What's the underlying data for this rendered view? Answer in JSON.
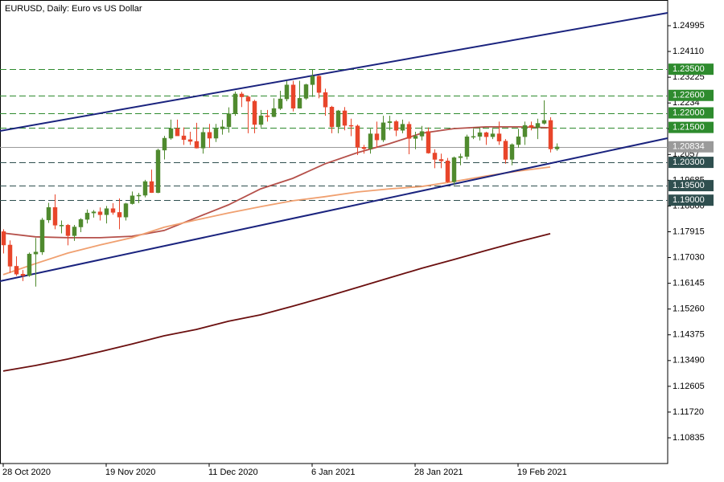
{
  "chart_data": {
    "type": "candlestick",
    "title": "EURUSD, Daily:  Euro vs US Dollar",
    "x": [
      0,
      1,
      2,
      3,
      4,
      5,
      6,
      7,
      8,
      9,
      10,
      11,
      12,
      13,
      14,
      15,
      16,
      17,
      18,
      19,
      20,
      21,
      22,
      23,
      24,
      25,
      26,
      27,
      28,
      29,
      30,
      31,
      32,
      33,
      34,
      35,
      36,
      37,
      38,
      39,
      40,
      41,
      42,
      43,
      44,
      45,
      46,
      47,
      48,
      49,
      50,
      51,
      52,
      53,
      54,
      55,
      56,
      57,
      58,
      59,
      60,
      61,
      62,
      63,
      64,
      65,
      66,
      67,
      68,
      69,
      70,
      71,
      72,
      73,
      74,
      75,
      76,
      77,
      78,
      79,
      80,
      81,
      82,
      83,
      84,
      85,
      86
    ],
    "open": [
      1.1792,
      1.1746,
      1.1673,
      1.1646,
      1.1641,
      1.1715,
      1.1722,
      1.1832,
      1.1875,
      1.1814,
      1.1814,
      1.1778,
      1.1808,
      1.1834,
      1.1856,
      1.186,
      1.185,
      1.1871,
      1.1858,
      1.1842,
      1.1888,
      1.1915,
      1.1917,
      1.1964,
      1.1926,
      1.2072,
      1.2113,
      1.2146,
      1.2121,
      1.2108,
      1.2102,
      1.2079,
      1.2133,
      1.2113,
      1.2145,
      1.2152,
      1.2197,
      1.2265,
      1.2255,
      1.224,
      1.216,
      1.219,
      1.2187,
      1.2215,
      1.2248,
      1.2296,
      1.2216,
      1.225,
      1.2297,
      1.2326,
      1.227,
      1.222,
      1.2152,
      1.2207,
      1.2157,
      1.2155,
      1.2082,
      1.2077,
      1.2128,
      1.2107,
      1.2166,
      1.217,
      1.214,
      1.2161,
      1.2112,
      1.212,
      1.2136,
      1.2062,
      1.204,
      1.2035,
      1.1963,
      1.2046,
      1.205,
      1.2118,
      1.2119,
      1.2132,
      1.2118,
      1.2128,
      1.2103,
      1.204,
      1.2091,
      1.2118,
      1.2157,
      1.215,
      1.2164,
      1.2174,
      1.2076
    ],
    "high": [
      1.18,
      1.1762,
      1.1707,
      1.166,
      1.172,
      1.177,
      1.1839,
      1.1891,
      1.192,
      1.183,
      1.1818,
      1.1815,
      1.1838,
      1.1868,
      1.1866,
      1.1875,
      1.188,
      1.189,
      1.1906,
      1.1891,
      1.193,
      1.1925,
      1.197,
      1.2005,
      1.2077,
      1.2121,
      1.2177,
      1.2177,
      1.215,
      1.2135,
      1.2166,
      1.215,
      1.2162,
      1.2162,
      1.2176,
      1.2219,
      1.2273,
      1.2272,
      1.2259,
      1.2245,
      1.221,
      1.221,
      1.225,
      1.2276,
      1.231,
      1.231,
      1.231,
      1.23,
      1.2349,
      1.233,
      1.2283,
      1.2224,
      1.221,
      1.222,
      1.218,
      1.216,
      1.209,
      1.2145,
      1.217,
      1.219,
      1.219,
      1.2175,
      1.2177,
      1.217,
      1.2135,
      1.2155,
      1.215,
      1.2075,
      1.206,
      1.2045,
      1.205,
      1.206,
      1.2125,
      1.2145,
      1.215,
      1.2135,
      1.2145,
      1.217,
      1.211,
      1.2095,
      1.2145,
      1.217,
      1.217,
      1.218,
      1.2243,
      1.2185,
      1.2095
    ],
    "low": [
      1.1717,
      1.165,
      1.164,
      1.1622,
      1.1637,
      1.1603,
      1.1712,
      1.1822,
      1.18,
      1.1786,
      1.1745,
      1.176,
      1.179,
      1.182,
      1.184,
      1.183,
      1.182,
      1.185,
      1.18,
      1.183,
      1.1885,
      1.189,
      1.191,
      1.1925,
      1.1924,
      1.204,
      1.2108,
      1.2126,
      1.209,
      1.209,
      1.2078,
      1.206,
      1.208,
      1.21,
      1.2125,
      1.2132,
      1.219,
      1.222,
      1.213,
      1.213,
      1.215,
      1.217,
      1.2185,
      1.221,
      1.224,
      1.2205,
      1.2215,
      1.2245,
      1.2255,
      1.225,
      1.219,
      1.213,
      1.213,
      1.214,
      1.212,
      1.2055,
      1.206,
      1.206,
      1.208,
      1.21,
      1.214,
      1.212,
      1.213,
      1.2058,
      1.2075,
      1.2105,
      1.206,
      1.201,
      1.201,
      1.196,
      1.1952,
      1.202,
      1.204,
      1.211,
      1.2105,
      1.209,
      1.211,
      1.209,
      1.2025,
      1.202,
      1.208,
      1.209,
      1.214,
      1.211,
      1.216,
      1.2064,
      1.207
    ],
    "close": [
      1.1746,
      1.1673,
      1.1646,
      1.1641,
      1.1715,
      1.1722,
      1.1832,
      1.1875,
      1.1814,
      1.1814,
      1.1778,
      1.1808,
      1.1834,
      1.1856,
      1.186,
      1.185,
      1.1871,
      1.1858,
      1.1842,
      1.1888,
      1.1915,
      1.1917,
      1.1964,
      1.1926,
      1.2072,
      1.2113,
      1.2146,
      1.2121,
      1.2108,
      1.2102,
      1.2079,
      1.2133,
      1.2113,
      1.2145,
      1.2152,
      1.2197,
      1.2265,
      1.2255,
      1.224,
      1.216,
      1.219,
      1.2187,
      1.2215,
      1.2248,
      1.2296,
      1.2216,
      1.225,
      1.2297,
      1.2326,
      1.227,
      1.222,
      1.2152,
      1.2207,
      1.2157,
      1.2155,
      1.2082,
      1.2077,
      1.2128,
      1.2107,
      1.2166,
      1.217,
      1.214,
      1.2161,
      1.2112,
      1.212,
      1.2136,
      1.2062,
      1.204,
      1.2035,
      1.1963,
      1.2046,
      1.205,
      1.2118,
      1.2119,
      1.2132,
      1.2118,
      1.2128,
      1.2103,
      1.204,
      1.2091,
      1.2118,
      1.2157,
      1.215,
      1.2164,
      1.2174,
      1.2076,
      1.2083
    ],
    "up_color": "#4f8a2e",
    "down_color": "#e8452a",
    "xlim": [
      -0.5,
      103.25
    ],
    "ylim": [
      1.09952,
      1.25878
    ],
    "xticks": [
      {
        "value": 0,
        "label": "28 Oct 2020"
      },
      {
        "value": 16,
        "label": "19 Nov 2020"
      },
      {
        "value": 32,
        "label": "11 Dec 2020"
      },
      {
        "value": 48,
        "label": "6 Jan 2021"
      },
      {
        "value": 64,
        "label": "28 Jan 2021"
      },
      {
        "value": 80,
        "label": "19 Feb 2021"
      }
    ],
    "yticks": [
      1.24995,
      {
        "value": 1.2411,
        "label": "1.24110"
      },
      1.23225,
      1.2234,
      1.21455,
      1.2057,
      1.19685,
      {
        "value": 1.188,
        "label": "1.18800"
      },
      1.17915,
      {
        "value": 1.1703,
        "label": "1.17030"
      },
      1.16145,
      {
        "value": 1.1526,
        "label": "1.15260"
      },
      1.14375,
      {
        "value": 1.1349,
        "label": "1.13490"
      },
      1.12605,
      {
        "value": 1.1172,
        "label": "1.11720"
      },
      1.10835
    ],
    "moving_averages": [
      {
        "color": "#b5504a",
        "x": [
          0,
          5,
          10,
          15,
          20,
          25,
          30,
          35,
          40,
          45,
          50,
          55,
          60,
          65,
          70,
          75,
          80,
          85
        ],
        "values": [
          1.1787,
          1.1774,
          1.1771,
          1.1771,
          1.1776,
          1.1796,
          1.184,
          1.1884,
          1.1939,
          1.1975,
          1.2025,
          1.2063,
          1.2094,
          1.213,
          1.2146,
          1.2152,
          1.2152,
          1.2149
        ]
      },
      {
        "color": "#f0a070",
        "x": [
          0,
          5,
          10,
          15,
          20,
          25,
          30,
          35,
          40,
          45,
          50,
          55,
          60,
          65,
          70,
          75,
          80,
          85
        ],
        "values": [
          1.1644,
          1.1682,
          1.1718,
          1.1746,
          1.1771,
          1.1807,
          1.1832,
          1.1856,
          1.1878,
          1.1898,
          1.1912,
          1.1928,
          1.1939,
          1.1947,
          1.1964,
          1.1983,
          1.2,
          1.2014
        ]
      },
      {
        "color": "#6b0f0f",
        "x": [
          0,
          5,
          10,
          15,
          20,
          25,
          30,
          35,
          40,
          45,
          50,
          55,
          60,
          65,
          70,
          75,
          80,
          85
        ],
        "values": [
          1.1313,
          1.1332,
          1.1354,
          1.1379,
          1.1406,
          1.1434,
          1.1456,
          1.1484,
          1.1506,
          1.1536,
          1.1567,
          1.16,
          1.1633,
          1.1666,
          1.1696,
          1.1727,
          1.1757,
          1.1785
        ]
      }
    ],
    "trendlines": [
      {
        "color": "#1a237e",
        "x": [
          -0.5,
          103.25
        ],
        "values": [
          1.21379,
          1.25436
        ]
      },
      {
        "color": "#1a237e",
        "x": [
          -0.5,
          103.25
        ],
        "values": [
          1.16217,
          1.2113
        ]
      }
    ],
    "levels": [
      {
        "value": 1.235,
        "label": "1.23500",
        "color": "#2e8b2e"
      },
      {
        "value": 1.226,
        "label": "1.22600",
        "color": "#2e8b2e"
      },
      {
        "value": 1.22,
        "label": "1.22000",
        "color": "#2e8b2e"
      },
      {
        "value": 1.215,
        "label": "1.21500",
        "color": "#2e8b2e"
      },
      {
        "value": 1.203,
        "label": "1.20300",
        "color": "#2f4f4f"
      },
      {
        "value": 1.195,
        "label": "1.19500",
        "color": "#2f4f4f"
      },
      {
        "value": 1.19,
        "label": "1.19000",
        "color": "#2f4f4f"
      }
    ],
    "last_price": {
      "value": 1.20834,
      "label": "1.20834",
      "color": "#9a9a9a"
    }
  }
}
